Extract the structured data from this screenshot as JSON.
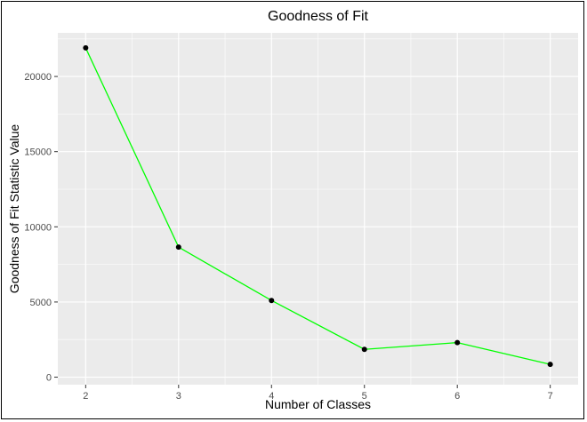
{
  "chart_data": {
    "type": "line",
    "title": "Goodness of Fit",
    "xlabel": "Number of Classes",
    "ylabel": "Goodness of Fit Statistic Value",
    "x": [
      2,
      3,
      4,
      5,
      6,
      7
    ],
    "series": [
      {
        "values": [
          21900,
          8650,
          5100,
          1850,
          2300,
          850
        ]
      }
    ],
    "xlim": [
      1.7,
      7.3
    ],
    "ylim": [
      -500,
      22900
    ],
    "xticks": [
      2,
      3,
      4,
      5,
      6,
      7
    ],
    "yticks": [
      0,
      5000,
      10000,
      15000,
      20000
    ],
    "grid": true,
    "colors": {
      "line": "#00ff00",
      "point": "#000000",
      "panel": "#ebebeb",
      "grid": "#ffffff"
    }
  }
}
